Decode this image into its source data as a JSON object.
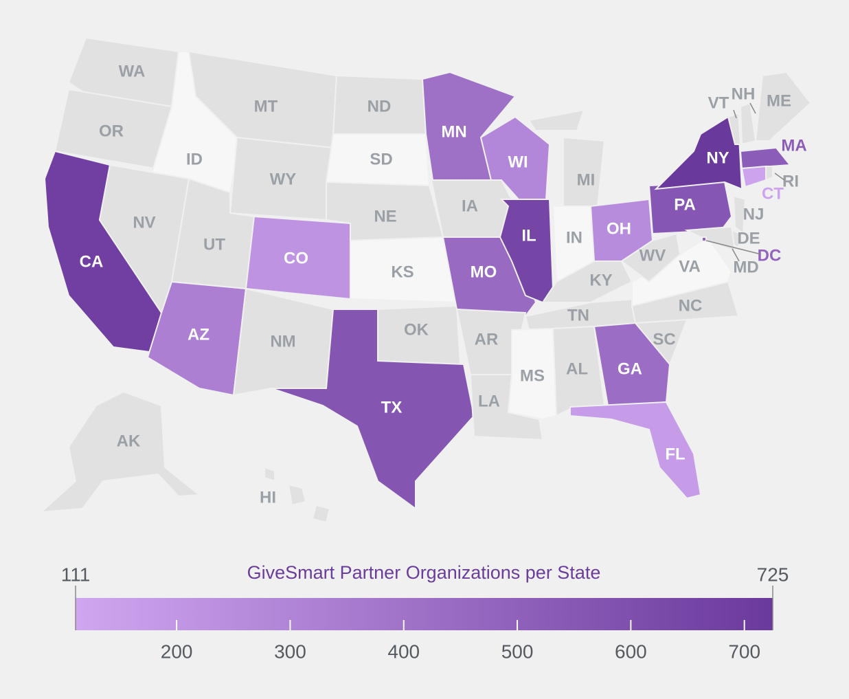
{
  "chart_data": {
    "type": "choropleth",
    "title": "GiveSmart Partner Organizations per State",
    "categories": [
      "WA",
      "OR",
      "CA",
      "ID",
      "NV",
      "MT",
      "WY",
      "UT",
      "AZ",
      "CO",
      "NM",
      "ND",
      "SD",
      "NE",
      "KS",
      "OK",
      "TX",
      "MN",
      "IA",
      "MO",
      "AR",
      "LA",
      "WI",
      "IL",
      "MI",
      "IN",
      "OH",
      "KY",
      "TN",
      "MS",
      "AL",
      "GA",
      "FL",
      "SC",
      "NC",
      "VA",
      "WV",
      "PA",
      "NY",
      "VT",
      "NH",
      "ME",
      "MA",
      "CT",
      "RI",
      "NJ",
      "DE",
      "MD",
      "DC",
      "AK",
      "HI"
    ],
    "values": [
      null,
      null,
      690,
      null,
      null,
      null,
      null,
      null,
      330,
      220,
      null,
      null,
      null,
      null,
      null,
      null,
      570,
      410,
      null,
      450,
      null,
      null,
      290,
      650,
      null,
      null,
      260,
      null,
      null,
      null,
      null,
      430,
      170,
      null,
      null,
      null,
      null,
      560,
      725,
      null,
      null,
      null,
      520,
      130,
      null,
      null,
      null,
      null,
      480,
      null,
      null
    ],
    "colorscale": [
      "#d0a6f0",
      "#6a399c"
    ],
    "lim": [
      111,
      725
    ],
    "ticks": [
      200,
      300,
      400,
      500,
      600,
      700
    ]
  }
}
